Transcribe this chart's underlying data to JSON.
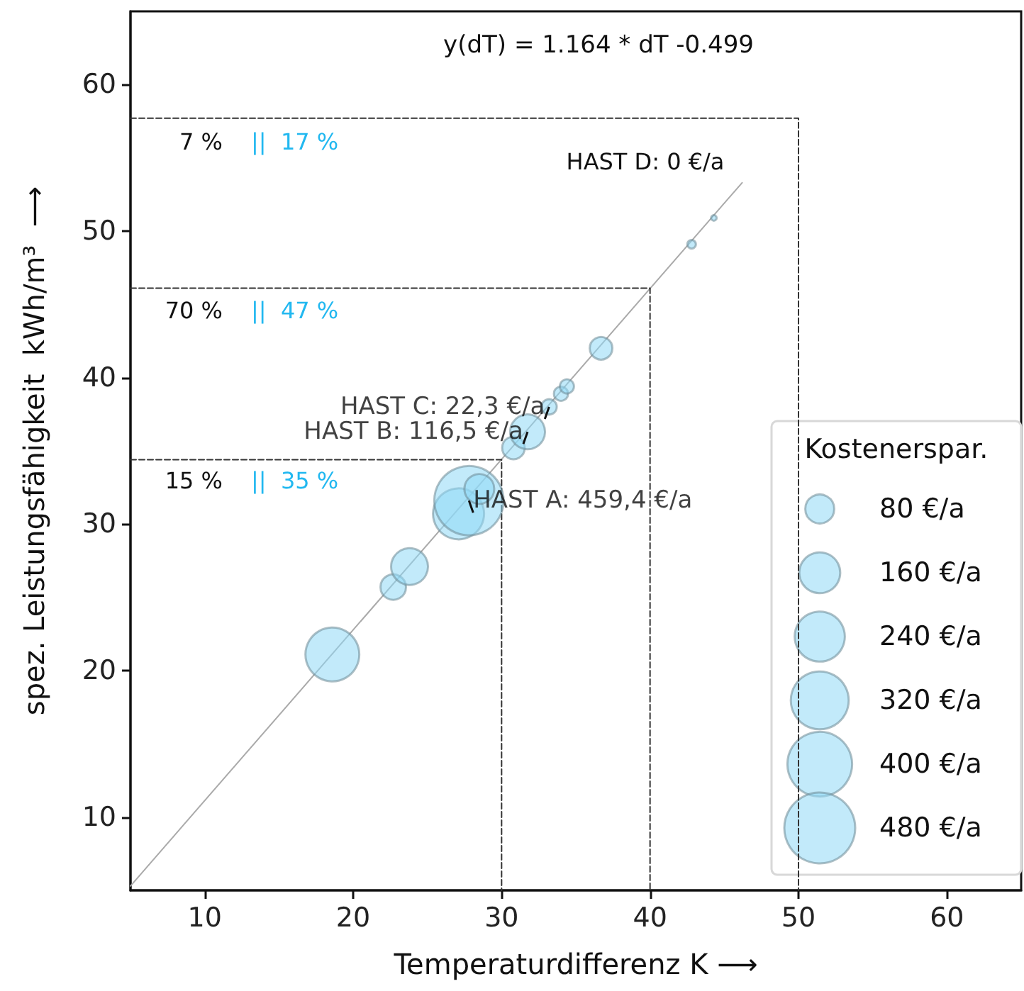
{
  "chart_data": {
    "type": "bubble",
    "xlabel": "Temperaturdifferenz K ⟶",
    "ylabel": "spez. Leistungsfähigkeit  kWh/m³  ⟶",
    "xlim": [
      5,
      65
    ],
    "ylim": [
      5,
      65
    ],
    "xticks": [
      10,
      20,
      30,
      40,
      50,
      60
    ],
    "yticks": [
      10,
      20,
      30,
      40,
      50,
      60
    ],
    "grid": false,
    "legend_title": "Kostenerspar.",
    "size_legend": [
      {
        "value": 80,
        "label": "80 €/a"
      },
      {
        "value": 160,
        "label": "160 €/a"
      },
      {
        "value": 240,
        "label": "240 €/a"
      },
      {
        "value": 320,
        "label": "320 €/a"
      },
      {
        "value": 400,
        "label": "400 €/a"
      },
      {
        "value": 480,
        "label": "480 €/a"
      }
    ],
    "series": [
      {
        "type": "line",
        "color": "#aaaaaa",
        "marker": "none",
        "line_style": "solid",
        "x": [
          5,
          46.2
        ],
        "values": [
          5.3,
          53.3
        ]
      },
      {
        "type": "line",
        "color": "#333333",
        "marker": "none",
        "line_style": "dashed",
        "x": [
          5,
          30,
          30
        ],
        "values": [
          34.4,
          34.4,
          5
        ]
      },
      {
        "type": "line",
        "color": "#333333",
        "marker": "none",
        "line_style": "dashed",
        "x": [
          5,
          40,
          40
        ],
        "values": [
          46.1,
          46.1,
          5
        ]
      },
      {
        "type": "line",
        "color": "#333333",
        "marker": "none",
        "line_style": "dashed",
        "x": [
          5,
          50,
          50
        ],
        "values": [
          57.7,
          57.7,
          5
        ]
      },
      {
        "color": "#8fd9f5",
        "x": [
          18.6,
          22.7,
          23.8,
          27.1,
          27.8,
          28.5,
          30.8,
          31.75,
          33.2,
          34.0,
          34.4,
          36.7,
          42.8,
          44.3
        ],
        "values": [
          21.1,
          25.7,
          27.1,
          30.7,
          31.6,
          32.4,
          35.2,
          36.3,
          38.0,
          38.9,
          39.4,
          42.0,
          49.1,
          50.9
        ],
        "sizes": [
          277,
          62,
          130,
          249,
          459.4,
          85,
          49,
          116.5,
          22.3,
          19,
          19,
          49,
          7,
          3
        ]
      }
    ],
    "annotations": [
      "y(dT) = 1.164 * dT -0.499",
      "7 %",
      "||  17 %",
      "70 %",
      "||  47 %",
      "15 %",
      "||  35 %",
      "HAST D: 0 €/a",
      {
        "text": "HAST A: 459,4 €/a",
        "x": 27.8,
        "y": 31.6
      },
      {
        "text": "HAST B: 116,5 €/a",
        "x": 31.75,
        "y": 36.3
      },
      {
        "text": "HAST C: 22,3 €/a",
        "x": 33.2,
        "y": 38.0
      }
    ]
  }
}
